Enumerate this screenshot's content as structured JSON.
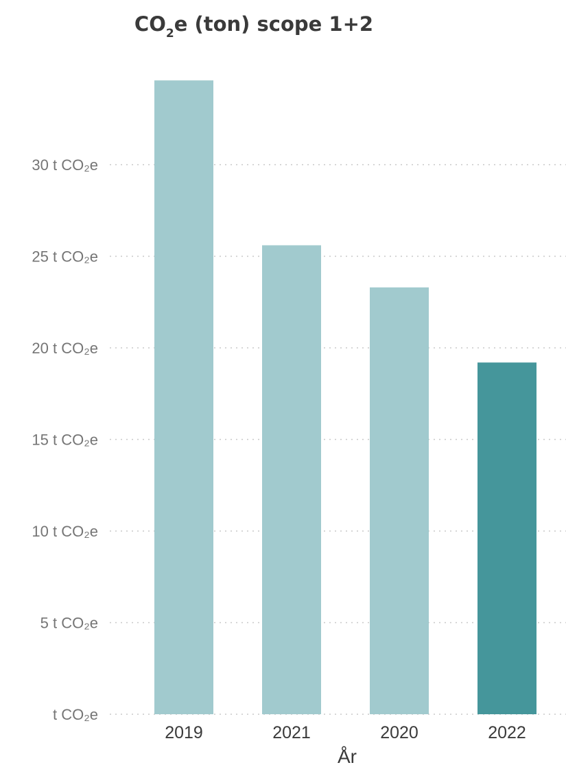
{
  "chart_data": {
    "type": "bar",
    "title": {
      "prefix": "CO",
      "subscript": "2",
      "suffix": "e (ton) scope 1+2"
    },
    "xlabel": "År",
    "ylabel": "",
    "categories": [
      "2019",
      "2021",
      "2020",
      "2022"
    ],
    "values": [
      34.6,
      25.6,
      23.3,
      19.2
    ],
    "highlight_index": 3,
    "colors": {
      "bar": "#a1cace",
      "highlight": "#45969b",
      "grid": "#c8c8c8",
      "tick_text": "#757575",
      "axis_title": "#3a3a3a"
    },
    "yticks": [
      {
        "value": 0,
        "label": "t CO₂e"
      },
      {
        "value": 5,
        "label": "5 t CO₂e"
      },
      {
        "value": 10,
        "label": "10 t CO₂e"
      },
      {
        "value": 15,
        "label": "15 t CO₂e"
      },
      {
        "value": 20,
        "label": "20 t CO₂e"
      },
      {
        "value": 25,
        "label": "25 t CO₂e"
      },
      {
        "value": 30,
        "label": "30 t CO₂e"
      }
    ],
    "ylim": [
      0,
      35
    ],
    "grid": true,
    "legend": "none"
  }
}
